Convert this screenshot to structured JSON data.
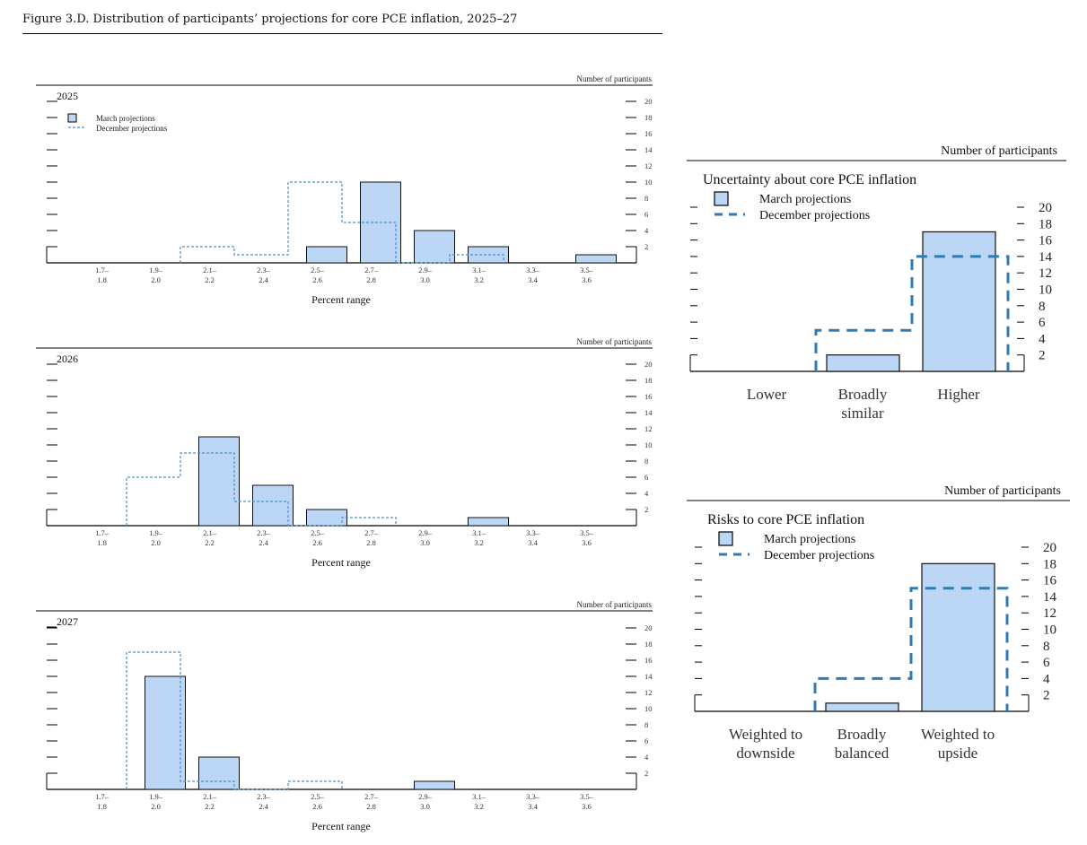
{
  "figure": {
    "title": "Figure 3.D. Distribution of participants’ projections for core PCE inflation, 2025–27"
  },
  "colors": {
    "march_fill": "#bcd6f5",
    "march_stroke": "#111111",
    "dec_small": "#4a90c8",
    "dec_big": "#2f7bb5"
  },
  "chart_data": [
    {
      "type": "bar",
      "panel": "2025",
      "title": "2025",
      "ylabel": "Number of participants",
      "xlabel": "Percent range",
      "ylim": [
        0,
        20
      ],
      "yticks": [
        2,
        4,
        6,
        8,
        10,
        12,
        14,
        16,
        18,
        20
      ],
      "categories": [
        [
          "1.7–",
          "1.8"
        ],
        [
          "1.9–",
          "2.0"
        ],
        [
          "2.1–",
          "2.2"
        ],
        [
          "2.3–",
          "2.4"
        ],
        [
          "2.5–",
          "2.6"
        ],
        [
          "2.7–",
          "2.8"
        ],
        [
          "2.9–",
          "3.0"
        ],
        [
          "3.1–",
          "3.2"
        ],
        [
          "3.3–",
          "3.4"
        ],
        [
          "3.5–",
          "3.6"
        ]
      ],
      "legend": [
        "March projections",
        "December projections"
      ],
      "series": [
        {
          "name": "March projections",
          "values": [
            0,
            0,
            0,
            0,
            2,
            10,
            4,
            2,
            0,
            1
          ]
        },
        {
          "name": "December projections",
          "values": [
            0,
            0,
            2,
            1,
            10,
            5,
            0,
            1,
            0,
            0
          ]
        }
      ]
    },
    {
      "type": "bar",
      "panel": "2026",
      "title": "2026",
      "ylabel": "Number of participants",
      "xlabel": "Percent range",
      "ylim": [
        0,
        20
      ],
      "yticks": [
        2,
        4,
        6,
        8,
        10,
        12,
        14,
        16,
        18,
        20
      ],
      "categories": [
        [
          "1.7–",
          "1.8"
        ],
        [
          "1.9–",
          "2.0"
        ],
        [
          "2.1–",
          "2.2"
        ],
        [
          "2.3–",
          "2.4"
        ],
        [
          "2.5–",
          "2.6"
        ],
        [
          "2.7–",
          "2.8"
        ],
        [
          "2.9–",
          "3.0"
        ],
        [
          "3.1–",
          "3.2"
        ],
        [
          "3.3–",
          "3.4"
        ],
        [
          "3.5–",
          "3.6"
        ]
      ],
      "series": [
        {
          "name": "March projections",
          "values": [
            0,
            0,
            11,
            5,
            2,
            0,
            0,
            1,
            0,
            0
          ]
        },
        {
          "name": "December projections",
          "values": [
            0,
            6,
            9,
            3,
            0,
            1,
            0,
            0,
            0,
            0
          ]
        }
      ]
    },
    {
      "type": "bar",
      "panel": "2027",
      "title": "2027",
      "ylabel": "Number of participants",
      "xlabel": "Percent range",
      "ylim": [
        0,
        20
      ],
      "yticks": [
        2,
        4,
        6,
        8,
        10,
        12,
        14,
        16,
        18,
        20
      ],
      "categories": [
        [
          "1.7–",
          "1.8"
        ],
        [
          "1.9–",
          "2.0"
        ],
        [
          "2.1–",
          "2.2"
        ],
        [
          "2.3–",
          "2.4"
        ],
        [
          "2.5–",
          "2.6"
        ],
        [
          "2.7–",
          "2.8"
        ],
        [
          "2.9–",
          "3.0"
        ],
        [
          "3.1–",
          "3.2"
        ],
        [
          "3.3–",
          "3.4"
        ],
        [
          "3.5–",
          "3.6"
        ]
      ],
      "series": [
        {
          "name": "March projections",
          "values": [
            0,
            14,
            4,
            0,
            0,
            0,
            1,
            0,
            0,
            0
          ]
        },
        {
          "name": "December projections",
          "values": [
            0,
            17,
            1,
            0,
            1,
            0,
            0,
            0,
            0,
            0
          ]
        }
      ]
    },
    {
      "type": "bar",
      "panel": "uncertainty",
      "title": "Uncertainty about core PCE inflation",
      "ylabel": "Number of participants",
      "ylim": [
        0,
        20
      ],
      "yticks": [
        2,
        4,
        6,
        8,
        10,
        12,
        14,
        16,
        18,
        20
      ],
      "categories": [
        [
          "Lower"
        ],
        [
          "Broadly",
          "similar"
        ],
        [
          "Higher"
        ]
      ],
      "legend": [
        "March projections",
        "December projections"
      ],
      "series": [
        {
          "name": "March projections",
          "values": [
            0,
            2,
            17
          ]
        },
        {
          "name": "December projections",
          "values": [
            0,
            5,
            14
          ]
        }
      ]
    },
    {
      "type": "bar",
      "panel": "risks",
      "title": "Risks to core PCE inflation",
      "ylabel": "Number of participants",
      "ylim": [
        0,
        20
      ],
      "yticks": [
        2,
        4,
        6,
        8,
        10,
        12,
        14,
        16,
        18,
        20
      ],
      "categories": [
        [
          "Weighted to",
          "downside"
        ],
        [
          "Broadly",
          "balanced"
        ],
        [
          "Weighted to",
          "upside"
        ]
      ],
      "legend": [
        "March projections",
        "December projections"
      ],
      "series": [
        {
          "name": "March projections",
          "values": [
            0,
            1,
            18
          ]
        },
        {
          "name": "December projections",
          "values": [
            0,
            4,
            15
          ]
        }
      ]
    }
  ]
}
